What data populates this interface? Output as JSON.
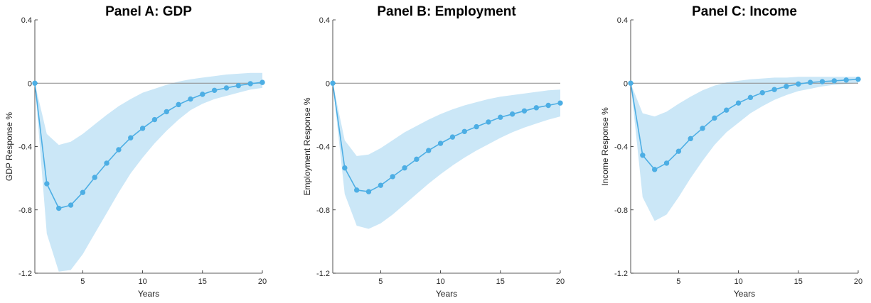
{
  "chart_data": [
    {
      "type": "line",
      "title": "Panel A: GDP",
      "xlabel": "Years",
      "ylabel": "GDP Response %",
      "xlim": [
        1,
        20
      ],
      "ylim": [
        -1.2,
        0.4
      ],
      "xticks": [
        "5",
        "10",
        "15",
        "20"
      ],
      "yticks": [
        "0.4",
        "0",
        "-0.4",
        "-0.8",
        "-1.2"
      ],
      "grid": false,
      "zero_line": true,
      "x": [
        1,
        2,
        3,
        4,
        5,
        6,
        7,
        8,
        9,
        10,
        11,
        12,
        13,
        14,
        15,
        16,
        17,
        18,
        19,
        20
      ],
      "series": [
        {
          "values": [
            0,
            -0.635,
            -0.79,
            -0.77,
            -0.69,
            -0.595,
            -0.505,
            -0.42,
            -0.345,
            -0.285,
            -0.23,
            -0.18,
            -0.135,
            -0.1,
            -0.07,
            -0.045,
            -0.03,
            -0.015,
            -0.003,
            0.005
          ]
        }
      ],
      "band": {
        "lower": [
          0,
          -0.95,
          -1.19,
          -1.18,
          -1.08,
          -0.95,
          -0.82,
          -0.69,
          -0.57,
          -0.47,
          -0.38,
          -0.3,
          -0.23,
          -0.17,
          -0.13,
          -0.1,
          -0.08,
          -0.06,
          -0.04,
          -0.03
        ],
        "upper": [
          0,
          -0.32,
          -0.39,
          -0.37,
          -0.32,
          -0.26,
          -0.2,
          -0.145,
          -0.1,
          -0.06,
          -0.035,
          -0.01,
          0.01,
          0.025,
          0.035,
          0.045,
          0.055,
          0.06,
          0.065,
          0.065
        ]
      },
      "colors": {
        "line": "#4daee4",
        "band": "#cbe7f7",
        "axis": "#262626",
        "zero_line": "#8c8c8c"
      }
    },
    {
      "type": "line",
      "title": "Panel B: Employment",
      "xlabel": "Years",
      "ylabel": "Employment Response %",
      "xlim": [
        1,
        20
      ],
      "ylim": [
        -1.2,
        0.4
      ],
      "xticks": [
        "5",
        "10",
        "15",
        "20"
      ],
      "yticks": [
        "0.4",
        "0",
        "-0.4",
        "-0.8",
        "-1.2"
      ],
      "grid": false,
      "zero_line": true,
      "x": [
        1,
        2,
        3,
        4,
        5,
        6,
        7,
        8,
        9,
        10,
        11,
        12,
        13,
        14,
        15,
        16,
        17,
        18,
        19,
        20
      ],
      "series": [
        {
          "values": [
            0,
            -0.535,
            -0.675,
            -0.685,
            -0.645,
            -0.59,
            -0.535,
            -0.48,
            -0.425,
            -0.38,
            -0.34,
            -0.305,
            -0.275,
            -0.245,
            -0.215,
            -0.195,
            -0.175,
            -0.155,
            -0.14,
            -0.125
          ]
        }
      ],
      "band": {
        "lower": [
          0,
          -0.7,
          -0.9,
          -0.92,
          -0.885,
          -0.83,
          -0.765,
          -0.7,
          -0.635,
          -0.575,
          -0.52,
          -0.47,
          -0.425,
          -0.385,
          -0.345,
          -0.31,
          -0.28,
          -0.255,
          -0.23,
          -0.21
        ],
        "upper": [
          0,
          -0.36,
          -0.46,
          -0.45,
          -0.41,
          -0.36,
          -0.31,
          -0.27,
          -0.23,
          -0.195,
          -0.165,
          -0.14,
          -0.12,
          -0.1,
          -0.085,
          -0.075,
          -0.065,
          -0.055,
          -0.045,
          -0.04
        ]
      },
      "colors": {
        "line": "#4daee4",
        "band": "#cbe7f7",
        "axis": "#262626",
        "zero_line": "#8c8c8c"
      }
    },
    {
      "type": "line",
      "title": "Panel C: Income",
      "xlabel": "Years",
      "ylabel": "Income Response %",
      "xlim": [
        1,
        20
      ],
      "ylim": [
        -1.2,
        0.4
      ],
      "xticks": [
        "5",
        "10",
        "15",
        "20"
      ],
      "yticks": [
        "0.4",
        "0",
        "-0.4",
        "-0.8",
        "-1.2"
      ],
      "grid": false,
      "zero_line": true,
      "x": [
        1,
        2,
        3,
        4,
        5,
        6,
        7,
        8,
        9,
        10,
        11,
        12,
        13,
        14,
        15,
        16,
        17,
        18,
        19,
        20
      ],
      "series": [
        {
          "values": [
            0,
            -0.455,
            -0.545,
            -0.505,
            -0.43,
            -0.35,
            -0.285,
            -0.22,
            -0.17,
            -0.125,
            -0.09,
            -0.06,
            -0.04,
            -0.02,
            -0.005,
            0.005,
            0.01,
            0.015,
            0.02,
            0.025
          ]
        }
      ],
      "band": {
        "lower": [
          0,
          -0.72,
          -0.87,
          -0.83,
          -0.72,
          -0.6,
          -0.49,
          -0.39,
          -0.31,
          -0.25,
          -0.19,
          -0.145,
          -0.105,
          -0.075,
          -0.05,
          -0.035,
          -0.02,
          -0.01,
          -0.005,
          0
        ],
        "upper": [
          0,
          -0.19,
          -0.21,
          -0.18,
          -0.13,
          -0.085,
          -0.045,
          -0.015,
          0.005,
          0.015,
          0.025,
          0.03,
          0.035,
          0.035,
          0.04,
          0.04,
          0.04,
          0.04,
          0.04,
          0.04
        ]
      },
      "colors": {
        "line": "#4daee4",
        "band": "#cbe7f7",
        "axis": "#262626",
        "zero_line": "#8c8c8c"
      }
    }
  ]
}
